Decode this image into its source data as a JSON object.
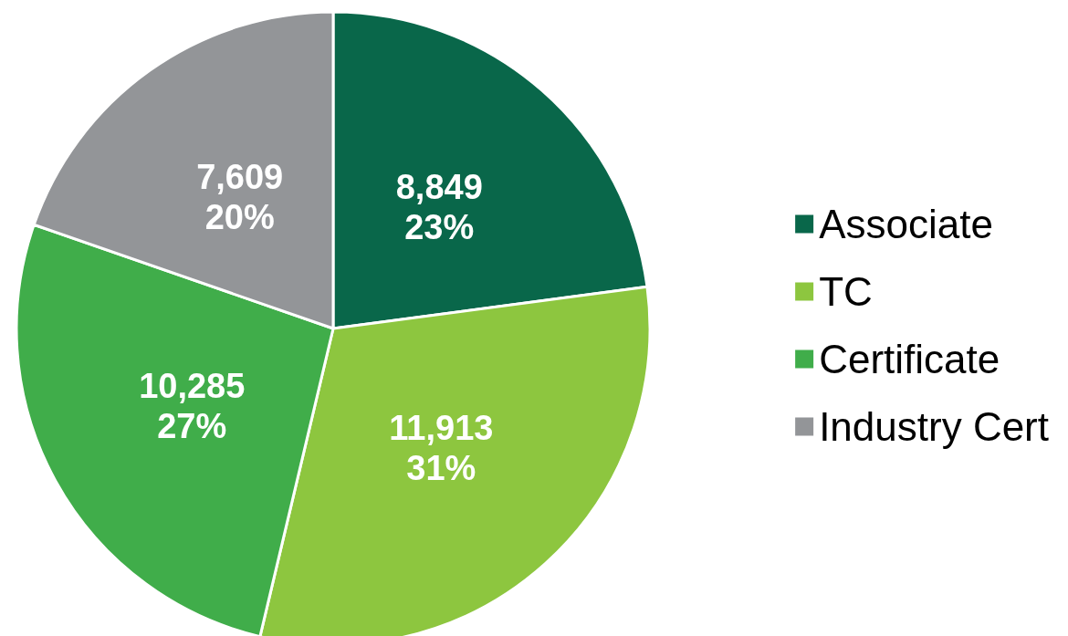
{
  "chart_data": {
    "type": "pie",
    "categories": [
      "Associate",
      "TC",
      "Certificate",
      "Industry Cert"
    ],
    "values": [
      8849,
      11913,
      10285,
      7609
    ],
    "colors": [
      "#09674a",
      "#8dc63f",
      "#40ad4a",
      "#939598"
    ],
    "value_labels": [
      "8,849\n23%",
      "11,913\n31%",
      "10,285\n27%",
      "7,609\n20%"
    ],
    "legend": "right"
  }
}
